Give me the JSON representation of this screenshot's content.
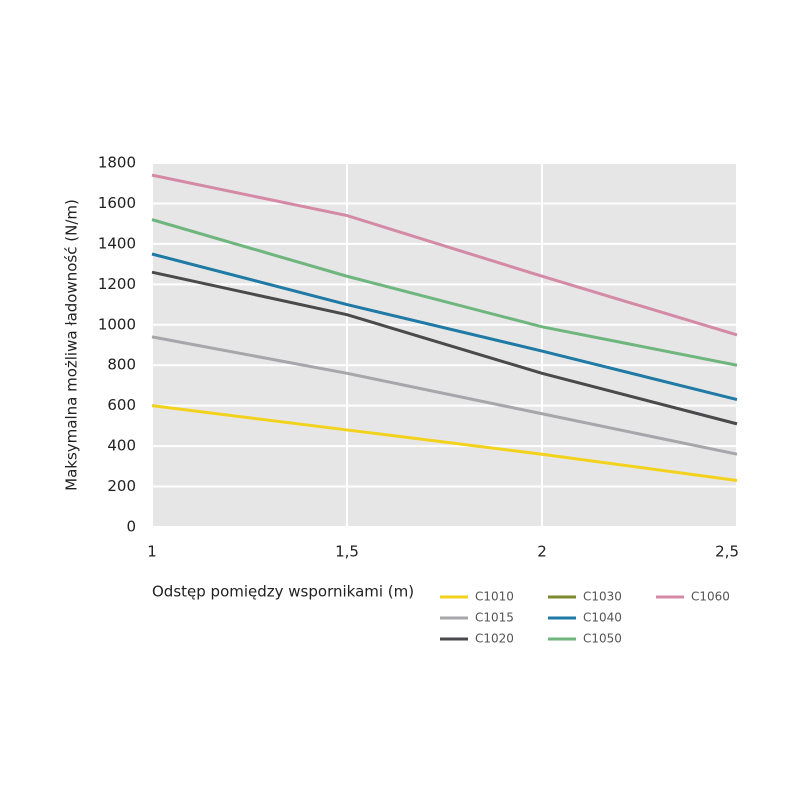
{
  "chart_data": {
    "type": "line",
    "x_label": "Odstęp pomiędzy wspornikami (m)",
    "y_label": "Maksymalna możliwa ładowność (N/m)",
    "x": [
      1,
      1.5,
      2,
      2.5
    ],
    "xlim": [
      1,
      2.5
    ],
    "xticks": [
      1,
      {
        "value": 1.5,
        "label": "1,5"
      },
      2,
      {
        "value": 2.5,
        "label": "2,5"
      }
    ],
    "ylim": [
      0,
      1800
    ],
    "yticks": [
      0,
      200,
      400,
      600,
      800,
      1000,
      1200,
      1400,
      1600,
      1800
    ],
    "grid": true,
    "series": [
      {
        "name": "C1010",
        "color": "#f2d21b",
        "values": [
          600,
          480,
          360,
          230
        ]
      },
      {
        "name": "C1015",
        "color": "#a6a6ab",
        "values": [
          940,
          760,
          560,
          360
        ]
      },
      {
        "name": "C1020",
        "color": "#4a4a4c",
        "values": [
          1260,
          1050,
          760,
          510
        ]
      },
      {
        "name": "C1030",
        "color": "#7d8a2e",
        "values": [
          null,
          null,
          null,
          null
        ]
      },
      {
        "name": "C1040",
        "color": "#1f7aa5",
        "values": [
          1350,
          1100,
          870,
          630
        ]
      },
      {
        "name": "C1050",
        "color": "#6fb57e",
        "values": [
          1520,
          1240,
          990,
          800
        ]
      },
      {
        "name": "C1060",
        "color": "#d48aa5",
        "values": [
          1740,
          1540,
          1240,
          950
        ]
      }
    ]
  }
}
